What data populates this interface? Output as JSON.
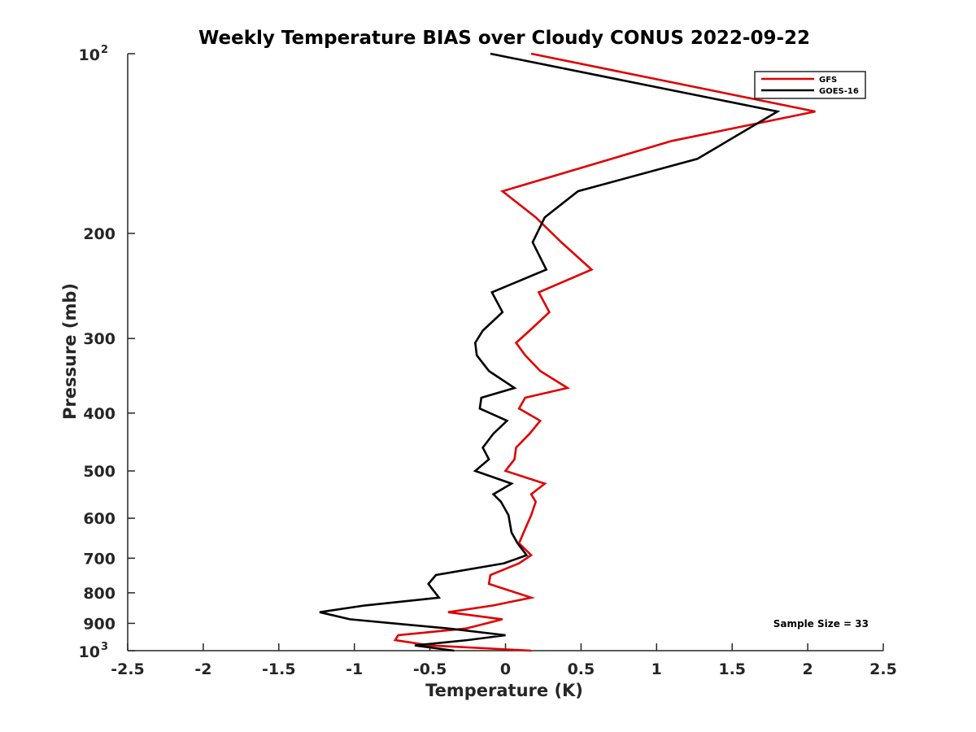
{
  "chart_data": {
    "type": "line",
    "title": "Weekly Temperature BIAS over Cloudy CONUS 2022-09-22",
    "xlabel": "Temperature (K)",
    "ylabel": "Pressure (mb)",
    "xlim": [
      -2.5,
      2.5
    ],
    "ylim": [
      1000,
      100
    ],
    "y_scale": "log",
    "y_reversed": true,
    "x_ticks": [
      "-2.5",
      "-2",
      "-1.5",
      "-1",
      "-0.5",
      "0",
      "0.5",
      "1",
      "1.5",
      "2",
      "2.5"
    ],
    "y_ticks": [
      {
        "value": 100,
        "base": "10",
        "exp": "2"
      },
      {
        "value": 200,
        "label": "200"
      },
      {
        "value": 300,
        "label": "300"
      },
      {
        "value": 400,
        "label": "400"
      },
      {
        "value": 500,
        "label": "500"
      },
      {
        "value": 600,
        "label": "600"
      },
      {
        "value": 700,
        "label": "700"
      },
      {
        "value": 800,
        "label": "800"
      },
      {
        "value": 900,
        "label": "900"
      },
      {
        "value": 1000,
        "base": "10",
        "exp": "3"
      }
    ],
    "grid": false,
    "legend_position": "top-right",
    "annotation": "Sample Size = 33",
    "series": [
      {
        "name": "GFS",
        "color": "#e00000",
        "points": [
          [
            0.17,
            100
          ],
          [
            2.05,
            125
          ],
          [
            1.1,
            140
          ],
          [
            -0.02,
            170
          ],
          [
            0.2,
            188
          ],
          [
            0.37,
            207
          ],
          [
            0.57,
            230
          ],
          [
            0.22,
            251
          ],
          [
            0.29,
            271
          ],
          [
            0.16,
            291
          ],
          [
            0.07,
            305
          ],
          [
            0.13,
            320
          ],
          [
            0.23,
            340
          ],
          [
            0.41,
            363
          ],
          [
            0.13,
            377
          ],
          [
            0.09,
            393
          ],
          [
            0.23,
            412
          ],
          [
            0.16,
            433
          ],
          [
            0.07,
            457
          ],
          [
            0.06,
            478
          ],
          [
            0.0,
            500
          ],
          [
            0.26,
            525
          ],
          [
            0.17,
            547
          ],
          [
            0.2,
            563
          ],
          [
            0.17,
            593
          ],
          [
            0.12,
            634
          ],
          [
            0.09,
            661
          ],
          [
            0.17,
            692
          ],
          [
            0.09,
            714
          ],
          [
            -0.1,
            747
          ],
          [
            -0.11,
            773
          ],
          [
            0.17,
            815
          ],
          [
            -0.08,
            840
          ],
          [
            -0.38,
            862
          ],
          [
            -0.02,
            886
          ],
          [
            -0.26,
            918
          ],
          [
            -0.71,
            942
          ],
          [
            -0.73,
            960
          ],
          [
            -0.5,
            980
          ],
          [
            0.17,
            1000
          ]
        ]
      },
      {
        "name": "GOES-16",
        "color": "#000000",
        "points": [
          [
            -0.1,
            100
          ],
          [
            1.8,
            125
          ],
          [
            1.27,
            150
          ],
          [
            0.48,
            170
          ],
          [
            0.26,
            188
          ],
          [
            0.18,
            207
          ],
          [
            0.27,
            230
          ],
          [
            -0.09,
            251
          ],
          [
            -0.02,
            271
          ],
          [
            -0.15,
            291
          ],
          [
            -0.2,
            305
          ],
          [
            -0.19,
            320
          ],
          [
            -0.11,
            340
          ],
          [
            0.06,
            363
          ],
          [
            -0.16,
            377
          ],
          [
            -0.17,
            393
          ],
          [
            0.01,
            412
          ],
          [
            -0.08,
            433
          ],
          [
            -0.15,
            457
          ],
          [
            -0.11,
            478
          ],
          [
            -0.2,
            500
          ],
          [
            0.04,
            525
          ],
          [
            -0.08,
            547
          ],
          [
            -0.03,
            563
          ],
          [
            0.02,
            593
          ],
          [
            0.04,
            634
          ],
          [
            0.08,
            661
          ],
          [
            0.14,
            692
          ],
          [
            -0.01,
            714
          ],
          [
            -0.46,
            747
          ],
          [
            -0.51,
            773
          ],
          [
            -0.44,
            815
          ],
          [
            -0.93,
            840
          ],
          [
            -1.23,
            862
          ],
          [
            -1.03,
            886
          ],
          [
            -0.38,
            918
          ],
          [
            0.0,
            942
          ],
          [
            -0.25,
            960
          ],
          [
            -0.6,
            980
          ],
          [
            -0.34,
            1000
          ]
        ]
      }
    ]
  }
}
